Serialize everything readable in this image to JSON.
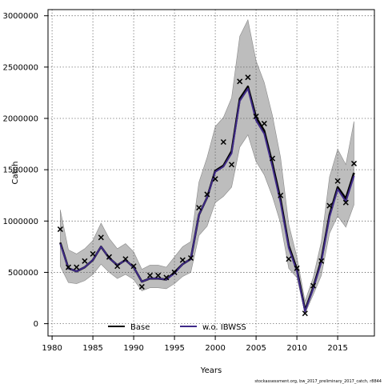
{
  "chart_data": {
    "type": "line",
    "xlabel": "Years",
    "ylabel": "Catch",
    "xlim": [
      1979.5,
      2019.5
    ],
    "ylim": [
      -120000,
      3060000
    ],
    "x_ticks": [
      1980,
      1985,
      1990,
      1995,
      2000,
      2005,
      2010,
      2015
    ],
    "y_ticks": [
      0,
      500000,
      1000000,
      1500000,
      2000000,
      2500000,
      3000000
    ],
    "grid": true,
    "legend_position": "bottom",
    "footnote": "stockassessment.org, bw_2017_preliminary_2017_catch, r8844",
    "colors": {
      "base": "#000000",
      "wo_ibwss": "#3f2a88",
      "band": "#bdbdbd"
    },
    "x": [
      1981,
      1982,
      1983,
      1984,
      1985,
      1986,
      1987,
      1988,
      1989,
      1990,
      1991,
      1992,
      1993,
      1994,
      1995,
      1996,
      1997,
      1998,
      1999,
      2000,
      2001,
      2002,
      2003,
      2004,
      2005,
      2006,
      2007,
      2008,
      2009,
      2010,
      2011,
      2012,
      2013,
      2014,
      2015,
      2016,
      2017
    ],
    "observed": [
      920000,
      550000,
      550000,
      610000,
      680000,
      840000,
      650000,
      560000,
      630000,
      560000,
      360000,
      470000,
      470000,
      450000,
      500000,
      620000,
      640000,
      1130000,
      1260000,
      1410000,
      1770000,
      1550000,
      2360000,
      2400000,
      2020000,
      1950000,
      1610000,
      1250000,
      630000,
      540000,
      100000,
      370000,
      610000,
      1150000,
      1390000,
      1180000,
      1560000
    ],
    "band": {
      "upper": [
        1110000,
        720000,
        680000,
        730000,
        810000,
        980000,
        830000,
        730000,
        780000,
        700000,
        530000,
        570000,
        570000,
        550000,
        650000,
        750000,
        800000,
        1380000,
        1620000,
        1920000,
        2010000,
        2200000,
        2800000,
        2960000,
        2560000,
        2350000,
        2030000,
        1620000,
        970000,
        650000,
        220000,
        450000,
        800000,
        1430000,
        1700000,
        1550000,
        1970000
      ],
      "lower": [
        560000,
        400000,
        390000,
        420000,
        480000,
        580000,
        500000,
        440000,
        480000,
        430000,
        320000,
        350000,
        350000,
        340000,
        390000,
        460000,
        500000,
        860000,
        950000,
        1180000,
        1240000,
        1330000,
        1720000,
        1840000,
        1580000,
        1450000,
        1240000,
        980000,
        540000,
        450000,
        100000,
        280000,
        470000,
        880000,
        1050000,
        940000,
        1160000
      ]
    },
    "series": [
      {
        "name": "Base",
        "values": [
          790000,
          540000,
          510000,
          550000,
          620000,
          750000,
          640000,
          570000,
          620000,
          550000,
          410000,
          440000,
          440000,
          430000,
          500000,
          580000,
          630000,
          1060000,
          1230000,
          1490000,
          1540000,
          1680000,
          2190000,
          2310000,
          2010000,
          1880000,
          1560000,
          1210000,
          760000,
          530000,
          130000,
          350000,
          620000,
          1060000,
          1330000,
          1220000,
          1470000
        ]
      },
      {
        "name": "w.o. IBWSS",
        "values": [
          780000,
          540000,
          510000,
          550000,
          620000,
          750000,
          640000,
          570000,
          620000,
          550000,
          410000,
          440000,
          440000,
          430000,
          490000,
          580000,
          630000,
          1060000,
          1230000,
          1480000,
          1530000,
          1660000,
          2170000,
          2290000,
          1980000,
          1850000,
          1530000,
          1180000,
          740000,
          510000,
          120000,
          340000,
          600000,
          1040000,
          1310000,
          1190000,
          1440000
        ]
      }
    ]
  }
}
